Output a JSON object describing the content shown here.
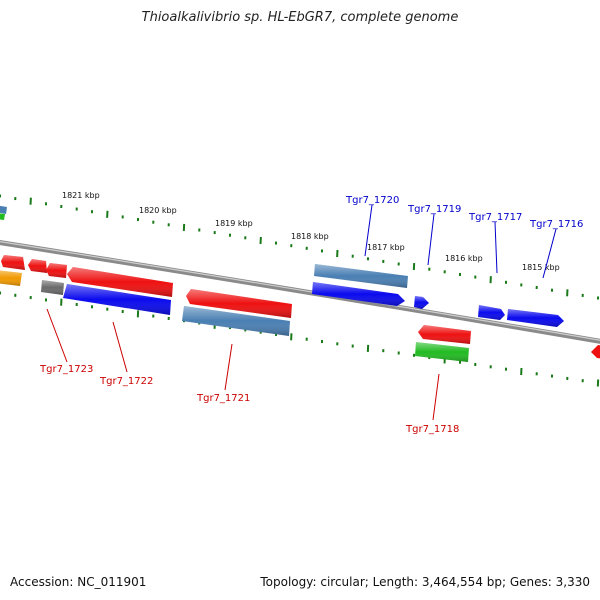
{
  "title": "Thioalkalivibrio sp. HL-EbGR7, complete genome",
  "accession": "Accession: NC_011901",
  "genome_info": "Topology: circular; Length: 3,464,554 bp; Genes: 3,330",
  "colors": {
    "backbone": "#8a8a8a",
    "tick": "#1a7a1a",
    "label_upper": "#0000cc",
    "label_lower": "#cc0000",
    "red": "#ee1111",
    "blue": "#0a0aee",
    "steelblue": "#4a7fb3",
    "green": "#22bb22",
    "gray": "#6a6a6a",
    "orange": "#f09a00"
  },
  "scale_labels": [
    "1821 kbp",
    "1820 kbp",
    "1819 kbp",
    "1818 kbp",
    "1817 kbp",
    "1816 kbp",
    "1815 kbp"
  ],
  "gene_labels_upper": [
    "Tgr7_1720",
    "Tgr7_1719",
    "Tgr7_1717",
    "Tgr7_1716"
  ],
  "gene_labels_lower": [
    "Tgr7_1723",
    "Tgr7_1722",
    "Tgr7_1721",
    "Tgr7_1718"
  ]
}
